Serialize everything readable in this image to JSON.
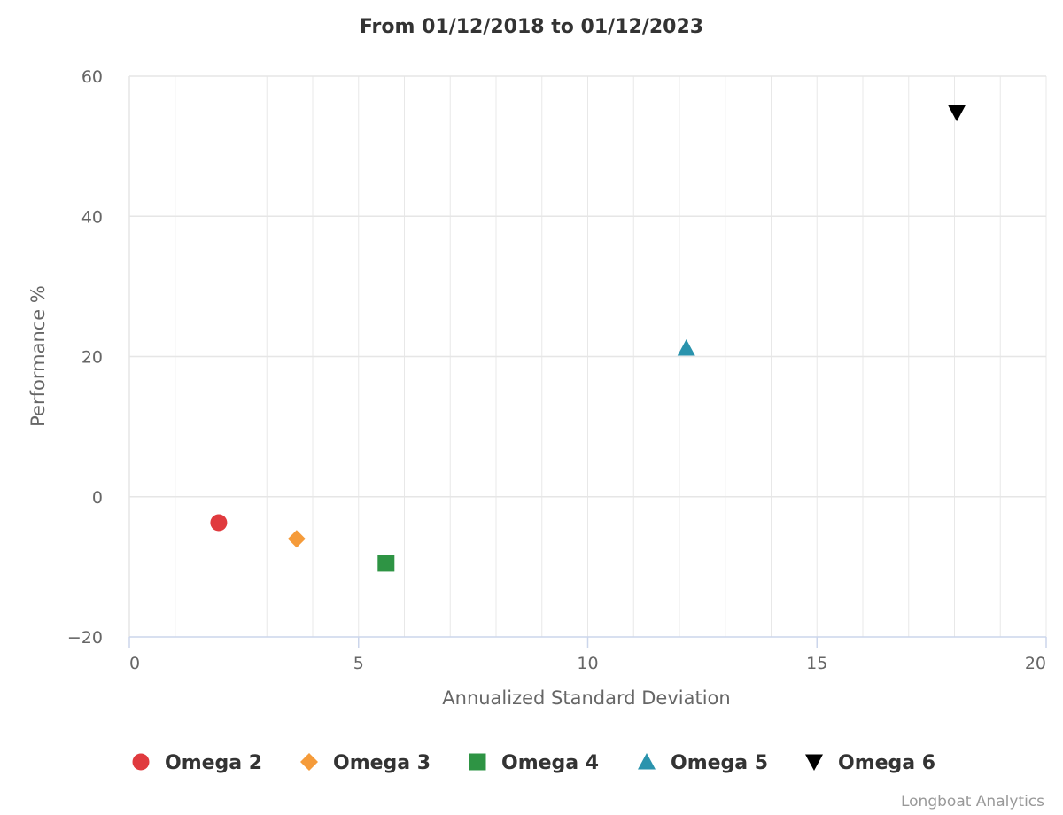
{
  "chart_data": {
    "type": "scatter",
    "title": "From 01/12/2018 to 01/12/2023",
    "xlabel": "Annualized Standard Deviation",
    "ylabel": "Performance %",
    "xlim": [
      0,
      20
    ],
    "ylim": [
      -20,
      60
    ],
    "x_ticks": [
      0,
      5,
      10,
      15,
      20
    ],
    "y_ticks": [
      -20,
      0,
      20,
      40,
      60
    ],
    "x_tick_labels": [
      "0",
      "5",
      "10",
      "15",
      "20"
    ],
    "y_tick_labels": [
      "−20",
      "0",
      "20",
      "40",
      "60"
    ],
    "x_minor_step": 1,
    "grid": true,
    "legend_position": "bottom",
    "series": [
      {
        "name": "Omega 2",
        "color": "#e03a3e",
        "symbol": "circle",
        "points": [
          {
            "x": 1.95,
            "y": -3.7
          }
        ]
      },
      {
        "name": "Omega 3",
        "color": "#f59b3a",
        "symbol": "diamond",
        "points": [
          {
            "x": 3.65,
            "y": -6.0
          }
        ]
      },
      {
        "name": "Omega 4",
        "color": "#2e9444",
        "symbol": "square",
        "points": [
          {
            "x": 5.6,
            "y": -9.5
          }
        ]
      },
      {
        "name": "Omega 5",
        "color": "#2a93ad",
        "symbol": "triangle-up",
        "points": [
          {
            "x": 12.15,
            "y": 21.2
          }
        ]
      },
      {
        "name": "Omega 6",
        "color": "#000000",
        "symbol": "triangle-down",
        "points": [
          {
            "x": 18.05,
            "y": 54.8
          }
        ]
      }
    ]
  },
  "credits": "Longboat Analytics"
}
